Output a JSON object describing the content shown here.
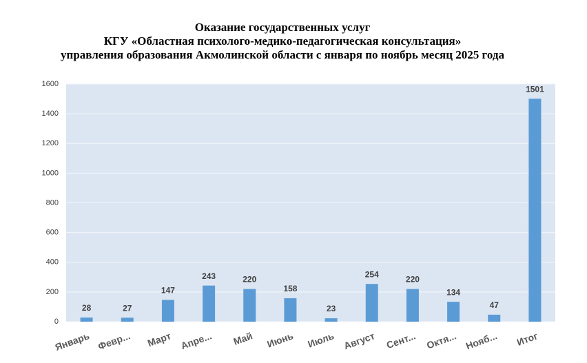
{
  "chart_data": {
    "type": "bar",
    "title": [
      "Оказание государственных услуг",
      "КГУ «Областная психолого-медико-педагогическая консультация»",
      "управления образования Акмолинской области с января по ноябрь месяц 2025 года"
    ],
    "categories": [
      "Январь",
      "Февр...",
      "Март",
      "Апре...",
      "Май",
      "Июнь",
      "Июль",
      "Август",
      "Сент...",
      "Октя...",
      "Нояб...",
      "Итог"
    ],
    "values": [
      28,
      27,
      147,
      243,
      220,
      158,
      23,
      254,
      220,
      134,
      47,
      1501
    ],
    "color": "#5b9bd5",
    "ylim": [
      0,
      1600
    ],
    "yticks": [
      0,
      200,
      400,
      600,
      800,
      1000,
      1200,
      1400,
      1600
    ],
    "grid": true
  }
}
